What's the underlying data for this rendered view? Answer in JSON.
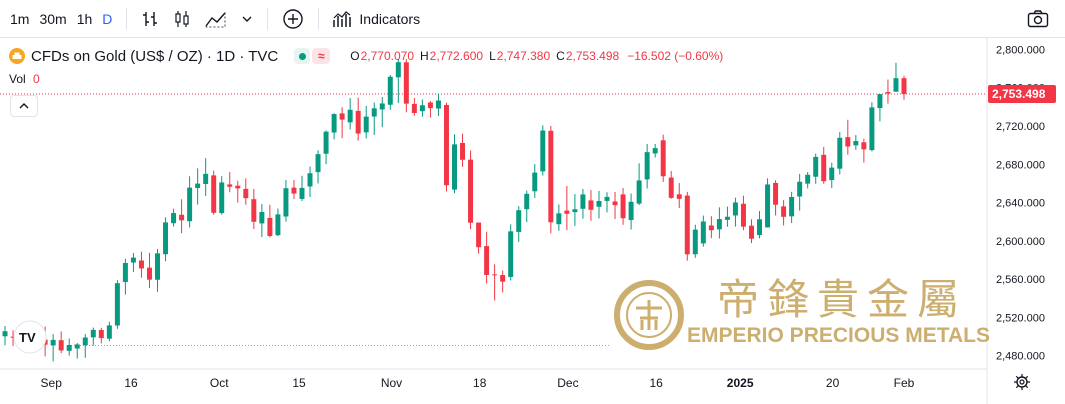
{
  "toolbar": {
    "intervals": [
      {
        "label": "1m",
        "active": false
      },
      {
        "label": "30m",
        "active": false
      },
      {
        "label": "1h",
        "active": false
      },
      {
        "label": "D",
        "active": true
      }
    ],
    "indicators_label": "Indicators",
    "icons": [
      "bar-chart-icon",
      "candlestick-icon",
      "area-chart-icon",
      "chevron-down-icon",
      "plus-circle-icon",
      "indicators-icon",
      "camera-icon"
    ]
  },
  "header": {
    "symbol": "CFDs on Gold (US$ / OZ) · 1D · TVC",
    "o_label": "O",
    "o_value": "2,770.070",
    "h_label": "H",
    "h_value": "2,772.600",
    "l_label": "L",
    "l_value": "2,747.380",
    "c_label": "C",
    "c_value": "2,753.498",
    "change": "−16.502 (−0.60%)",
    "vol_label": "Vol",
    "vol_value": "0",
    "colors": {
      "down": "#f23645",
      "up": "#089981",
      "text": "#131722"
    }
  },
  "watermark": {
    "chinese": "帝鋒貴金屬",
    "english": "EMPERIO PRECIOUS METALS",
    "color": "#c8a862"
  },
  "chart_data": {
    "type": "candlestick",
    "title": "CFDs on Gold (US$ / OZ) · 1D · TVC",
    "last_price_label": "2,753.498",
    "y_ticks": [
      "2,800.000",
      "2,760.000",
      "2,720.000",
      "2,680.000",
      "2,640.000",
      "2,600.000",
      "2,560.000",
      "2,520.000",
      "2,480.000"
    ],
    "x_ticks": [
      "Sep",
      "16",
      "Oct",
      "15",
      "Nov",
      "18",
      "Dec",
      "16",
      "2025",
      "20",
      "Feb"
    ],
    "ylim": [
      2466,
      2812
    ],
    "candles": [
      {
        "o": 2500.2,
        "h": 2510.9,
        "l": 2490.8,
        "c": 2505.5
      },
      {
        "o": 2499.8,
        "h": 2506.5,
        "l": 2489.9,
        "c": 2499.3
      },
      {
        "o": 2491.6,
        "h": 2508.8,
        "l": 2486.8,
        "c": 2503.2
      },
      {
        "o": 2499.8,
        "h": 2512.9,
        "l": 2496.0,
        "c": 2505.5
      },
      {
        "o": 2504.1,
        "h": 2512.7,
        "l": 2487.9,
        "c": 2500.2
      },
      {
        "o": 2496.8,
        "h": 2510.3,
        "l": 2479.3,
        "c": 2491.4
      },
      {
        "o": 2490.6,
        "h": 2502.4,
        "l": 2474.0,
        "c": 2496.4
      },
      {
        "o": 2496.1,
        "h": 2505.4,
        "l": 2482.5,
        "c": 2485.4
      },
      {
        "o": 2485.0,
        "h": 2497.9,
        "l": 2479.9,
        "c": 2491.1
      },
      {
        "o": 2487.4,
        "h": 2493.2,
        "l": 2476.9,
        "c": 2491.7
      },
      {
        "o": 2490.9,
        "h": 2502.5,
        "l": 2477.8,
        "c": 2498.9
      },
      {
        "o": 2499.1,
        "h": 2509.3,
        "l": 2490.6,
        "c": 2506.9
      },
      {
        "o": 2506.8,
        "h": 2509.1,
        "l": 2492.8,
        "c": 2498.3
      },
      {
        "o": 2497.7,
        "h": 2515.4,
        "l": 2495.0,
        "c": 2511.6
      },
      {
        "o": 2511.5,
        "h": 2558.8,
        "l": 2508.0,
        "c": 2555.7
      },
      {
        "o": 2556.9,
        "h": 2581.2,
        "l": 2543.8,
        "c": 2576.8
      },
      {
        "o": 2577.3,
        "h": 2587.2,
        "l": 2567.5,
        "c": 2582.4
      },
      {
        "o": 2579.4,
        "h": 2588.6,
        "l": 2561.5,
        "c": 2571.1
      },
      {
        "o": 2571.9,
        "h": 2587.5,
        "l": 2550.6,
        "c": 2559.4
      },
      {
        "o": 2559.3,
        "h": 2591.3,
        "l": 2546.7,
        "c": 2586.9
      },
      {
        "o": 2586.0,
        "h": 2624.5,
        "l": 2578.7,
        "c": 2619.3
      },
      {
        "o": 2618.4,
        "h": 2633.6,
        "l": 2614.9,
        "c": 2629.0
      },
      {
        "o": 2627.2,
        "h": 2643.4,
        "l": 2608.0,
        "c": 2621.4
      },
      {
        "o": 2620.5,
        "h": 2667.5,
        "l": 2613.9,
        "c": 2655.6
      },
      {
        "o": 2655.2,
        "h": 2675.8,
        "l": 2637.9,
        "c": 2659.8
      },
      {
        "o": 2659.4,
        "h": 2686.4,
        "l": 2646.9,
        "c": 2670.0
      },
      {
        "o": 2668.4,
        "h": 2673.4,
        "l": 2627.3,
        "c": 2629.3
      },
      {
        "o": 2629.0,
        "h": 2667.6,
        "l": 2627.4,
        "c": 2661.0
      },
      {
        "o": 2659.0,
        "h": 2671.9,
        "l": 2650.8,
        "c": 2656.5
      },
      {
        "o": 2657.6,
        "h": 2662.7,
        "l": 2639.9,
        "c": 2654.8
      },
      {
        "o": 2654.3,
        "h": 2665.3,
        "l": 2637.7,
        "c": 2644.6
      },
      {
        "o": 2643.5,
        "h": 2654.2,
        "l": 2612.3,
        "c": 2619.9
      },
      {
        "o": 2618.2,
        "h": 2638.5,
        "l": 2603.9,
        "c": 2630.1
      },
      {
        "o": 2623.9,
        "h": 2637.6,
        "l": 2603.6,
        "c": 2605.0
      },
      {
        "o": 2605.9,
        "h": 2633.8,
        "l": 2604.9,
        "c": 2627.6
      },
      {
        "o": 2625.4,
        "h": 2663.7,
        "l": 2620.1,
        "c": 2655.0
      },
      {
        "o": 2655.6,
        "h": 2663.4,
        "l": 2643.6,
        "c": 2649.4
      },
      {
        "o": 2643.8,
        "h": 2668.0,
        "l": 2641.5,
        "c": 2655.3
      },
      {
        "o": 2656.8,
        "h": 2677.6,
        "l": 2645.8,
        "c": 2670.6
      },
      {
        "o": 2671.8,
        "h": 2694.6,
        "l": 2659.9,
        "c": 2690.6
      },
      {
        "o": 2691.0,
        "h": 2715.4,
        "l": 2680.1,
        "c": 2714.1
      },
      {
        "o": 2713.2,
        "h": 2733.4,
        "l": 2706.0,
        "c": 2732.5
      },
      {
        "o": 2733.2,
        "h": 2739.6,
        "l": 2707.3,
        "c": 2726.7
      },
      {
        "o": 2723.8,
        "h": 2749.2,
        "l": 2716.4,
        "c": 2737.0
      },
      {
        "o": 2735.8,
        "h": 2749.6,
        "l": 2704.8,
        "c": 2712.1
      },
      {
        "o": 2713.4,
        "h": 2741.1,
        "l": 2707.0,
        "c": 2729.8
      },
      {
        "o": 2729.9,
        "h": 2744.6,
        "l": 2710.5,
        "c": 2738.5
      },
      {
        "o": 2737.3,
        "h": 2750.3,
        "l": 2718.7,
        "c": 2743.6
      },
      {
        "o": 2742.2,
        "h": 2773.3,
        "l": 2737.0,
        "c": 2771.5
      },
      {
        "o": 2770.9,
        "h": 2789.9,
        "l": 2744.0,
        "c": 2786.7
      },
      {
        "o": 2786.6,
        "h": 2790.1,
        "l": 2734.3,
        "c": 2743.4
      },
      {
        "o": 2743.1,
        "h": 2749.3,
        "l": 2730.8,
        "c": 2733.6
      },
      {
        "o": 2735.5,
        "h": 2747.7,
        "l": 2729.8,
        "c": 2741.7
      },
      {
        "o": 2744.6,
        "h": 2746.0,
        "l": 2728.8,
        "c": 2738.7
      },
      {
        "o": 2738.3,
        "h": 2753.7,
        "l": 2730.3,
        "c": 2746.6
      },
      {
        "o": 2742.0,
        "h": 2744.3,
        "l": 2651.6,
        "c": 2658.1
      },
      {
        "o": 2653.5,
        "h": 2711.2,
        "l": 2649.7,
        "c": 2700.8
      },
      {
        "o": 2702.3,
        "h": 2711.9,
        "l": 2677.3,
        "c": 2684.7
      },
      {
        "o": 2684.8,
        "h": 2694.5,
        "l": 2612.3,
        "c": 2618.9
      },
      {
        "o": 2619.1,
        "h": 2618.7,
        "l": 2586.5,
        "c": 2593.3
      },
      {
        "o": 2594.5,
        "h": 2609.5,
        "l": 2555.3,
        "c": 2564.3
      },
      {
        "o": 2564.9,
        "h": 2575.4,
        "l": 2537.6,
        "c": 2564.8
      },
      {
        "o": 2564.2,
        "h": 2569.0,
        "l": 2546.1,
        "c": 2557.3
      },
      {
        "o": 2562.2,
        "h": 2617.2,
        "l": 2558.6,
        "c": 2609.9
      },
      {
        "o": 2609.3,
        "h": 2636.2,
        "l": 2598.9,
        "c": 2632.0
      },
      {
        "o": 2633.0,
        "h": 2652.6,
        "l": 2619.5,
        "c": 2649.1
      },
      {
        "o": 2651.8,
        "h": 2680.1,
        "l": 2644.8,
        "c": 2671.3
      },
      {
        "o": 2672.6,
        "h": 2720.7,
        "l": 2668.2,
        "c": 2715.3
      },
      {
        "o": 2715.0,
        "h": 2720.1,
        "l": 2607.8,
        "c": 2619.4
      },
      {
        "o": 2617.4,
        "h": 2638.0,
        "l": 2610.5,
        "c": 2628.7
      },
      {
        "o": 2631.6,
        "h": 2657.4,
        "l": 2611.2,
        "c": 2628.3
      },
      {
        "o": 2630.0,
        "h": 2648.8,
        "l": 2615.6,
        "c": 2633.0
      },
      {
        "o": 2633.5,
        "h": 2654.1,
        "l": 2623.1,
        "c": 2648.5
      },
      {
        "o": 2642.2,
        "h": 2653.0,
        "l": 2620.9,
        "c": 2632.4
      },
      {
        "o": 2635.6,
        "h": 2652.2,
        "l": 2623.4,
        "c": 2641.6
      },
      {
        "o": 2641.7,
        "h": 2650.7,
        "l": 2629.7,
        "c": 2645.9
      },
      {
        "o": 2641.1,
        "h": 2651.1,
        "l": 2622.8,
        "c": 2637.3
      },
      {
        "o": 2648.5,
        "h": 2655.2,
        "l": 2616.7,
        "c": 2623.6
      },
      {
        "o": 2621.8,
        "h": 2649.4,
        "l": 2611.8,
        "c": 2640.8
      },
      {
        "o": 2638.9,
        "h": 2681.1,
        "l": 2637.3,
        "c": 2663.1
      },
      {
        "o": 2664.2,
        "h": 2701.2,
        "l": 2654.7,
        "c": 2692.7
      },
      {
        "o": 2691.3,
        "h": 2701.3,
        "l": 2687.0,
        "c": 2696.9
      },
      {
        "o": 2705.1,
        "h": 2711.0,
        "l": 2661.6,
        "c": 2667.5
      },
      {
        "o": 2666.1,
        "h": 2672.9,
        "l": 2643.9,
        "c": 2644.9
      },
      {
        "o": 2648.6,
        "h": 2660.4,
        "l": 2634.3,
        "c": 2643.9
      },
      {
        "o": 2647.3,
        "h": 2651.2,
        "l": 2579.2,
        "c": 2585.9
      },
      {
        "o": 2586.0,
        "h": 2616.8,
        "l": 2582.2,
        "c": 2611.7
      },
      {
        "o": 2597.3,
        "h": 2626.4,
        "l": 2593.9,
        "c": 2620.2
      },
      {
        "o": 2616.0,
        "h": 2625.8,
        "l": 2602.7,
        "c": 2611.1
      },
      {
        "o": 2612.0,
        "h": 2635.0,
        "l": 2602.4,
        "c": 2622.7
      },
      {
        "o": 2621.9,
        "h": 2635.8,
        "l": 2614.7,
        "c": 2625.1
      },
      {
        "o": 2626.5,
        "h": 2645.1,
        "l": 2614.9,
        "c": 2640.1
      },
      {
        "o": 2638.7,
        "h": 2647.2,
        "l": 2611.1,
        "c": 2614.8
      },
      {
        "o": 2615.8,
        "h": 2622.5,
        "l": 2597.6,
        "c": 2602.2
      },
      {
        "o": 2606.0,
        "h": 2631.1,
        "l": 2602.6,
        "c": 2622.5
      },
      {
        "o": 2614.0,
        "h": 2665.3,
        "l": 2614.5,
        "c": 2658.9
      },
      {
        "o": 2660.5,
        "h": 2663.3,
        "l": 2626.5,
        "c": 2637.7
      },
      {
        "o": 2636.0,
        "h": 2642.5,
        "l": 2616.0,
        "c": 2625.1
      },
      {
        "o": 2625.6,
        "h": 2651.2,
        "l": 2618.5,
        "c": 2645.8
      },
      {
        "o": 2646.3,
        "h": 2669.9,
        "l": 2631.5,
        "c": 2661.7
      },
      {
        "o": 2659.8,
        "h": 2671.9,
        "l": 2654.8,
        "c": 2669.0
      },
      {
        "o": 2667.0,
        "h": 2691.2,
        "l": 2659.6,
        "c": 2687.7
      },
      {
        "o": 2689.9,
        "h": 2698.2,
        "l": 2659.6,
        "c": 2662.3
      },
      {
        "o": 2663.5,
        "h": 2681.7,
        "l": 2655.1,
        "c": 2676.5
      },
      {
        "o": 2675.4,
        "h": 2713.8,
        "l": 2669.4,
        "c": 2707.7
      },
      {
        "o": 2708.3,
        "h": 2726.5,
        "l": 2690.0,
        "c": 2698.6
      },
      {
        "o": 2699.8,
        "h": 2710.5,
        "l": 2695.1,
        "c": 2704.3
      },
      {
        "o": 2703.0,
        "h": 2706.7,
        "l": 2681.8,
        "c": 2695.6
      },
      {
        "o": 2694.8,
        "h": 2744.9,
        "l": 2693.5,
        "c": 2739.5
      },
      {
        "o": 2738.8,
        "h": 2753.1,
        "l": 2724.8,
        "c": 2753.3
      },
      {
        "o": 2755.5,
        "h": 2768.5,
        "l": 2743.4,
        "c": 2754.0
      },
      {
        "o": 2755.9,
        "h": 2786.1,
        "l": 2755.5,
        "c": 2770.0
      },
      {
        "o": 2770.0,
        "h": 2772.6,
        "l": 2747.4,
        "c": 2753.5
      }
    ]
  }
}
